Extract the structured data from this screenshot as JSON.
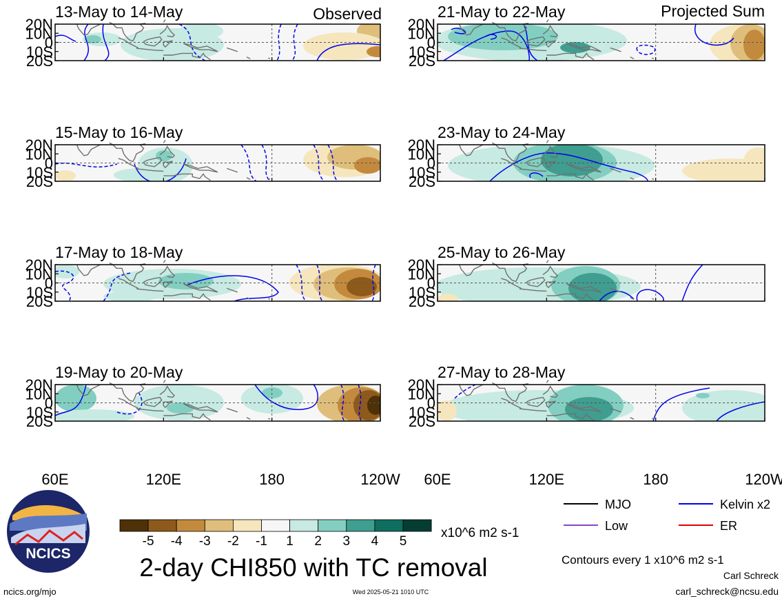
{
  "figure": {
    "title": "2-day CHI850 with TC removal",
    "units": "x10^6 m2 s-1",
    "contours_note": "Contours every 1 x10^6 m2 s-1",
    "author": "Carl Schreck",
    "email": "carl_schreck@ncsu.edu",
    "website": "ncics.org/mjo",
    "timestamp": "Wed 2025-05-21 1010 UTC",
    "logo_text": "NCICS"
  },
  "chart_data": {
    "type": "heatmap",
    "columns": [
      {
        "header": "Observed",
        "panels": [
          {
            "title": "13-May to 14-May"
          },
          {
            "title": "15-May to 16-May"
          },
          {
            "title": "17-May to 18-May"
          },
          {
            "title": "19-May to 20-May"
          }
        ]
      },
      {
        "header": "Projected Sum",
        "panels": [
          {
            "title": "21-May to 22-May"
          },
          {
            "title": "23-May to 24-May"
          },
          {
            "title": "25-May to 26-May"
          },
          {
            "title": "27-May to 28-May"
          }
        ]
      }
    ],
    "y_ticks": [
      "20N",
      "10N",
      "0",
      "10S",
      "20S"
    ],
    "y_values": [
      20,
      10,
      0,
      -10,
      -20
    ],
    "x_ticks": [
      "60E",
      "120E",
      "180",
      "120W"
    ],
    "x_values": [
      60,
      120,
      180,
      240
    ],
    "xlim": [
      60,
      240
    ],
    "ylim": [
      -20,
      20
    ],
    "colorbar": {
      "labels": [
        "-5",
        "-4",
        "-3",
        "-2",
        "-1",
        "1",
        "2",
        "3",
        "4",
        "5"
      ],
      "colors": [
        "#4e3108",
        "#8e5a1b",
        "#c38a3e",
        "#dfbe7c",
        "#f5e6bd",
        "#f6f6f6",
        "#c7eae2",
        "#82cfc1",
        "#3f9e90",
        "#0f6e60",
        "#053d33"
      ]
    },
    "legend": [
      {
        "label": "MJO",
        "color": "#000000"
      },
      {
        "label": "Kelvin x2",
        "color": "#0000ee"
      },
      {
        "label": "Low",
        "color": "#8844cc"
      },
      {
        "label": "ER",
        "color": "#dd0000"
      }
    ]
  }
}
